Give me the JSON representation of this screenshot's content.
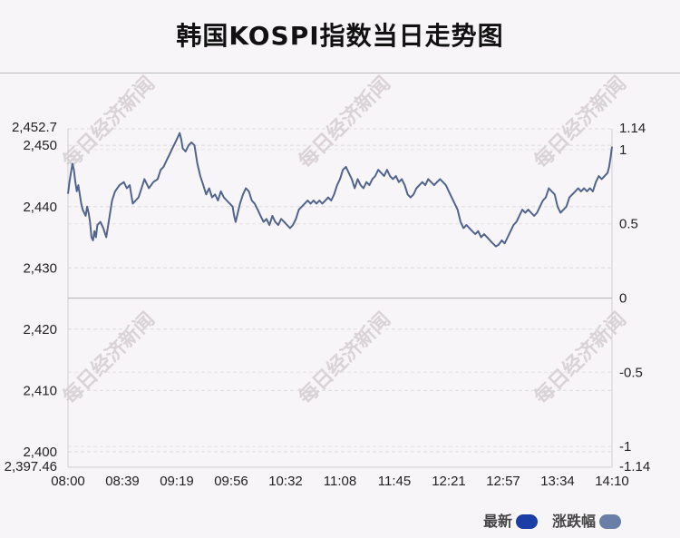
{
  "chart_data": {
    "type": "line",
    "title": "韩国KOSPI指数当日走势图",
    "watermark": "每日经济新闻",
    "legend": {
      "placement": "bottom-right",
      "entries": [
        {
          "label": "最新",
          "color": "#1a3da8"
        },
        {
          "label": "涨跌幅",
          "color": "#6a7fa8"
        }
      ]
    },
    "line_color": "#51648c",
    "x_tick_labels": [
      "08:00",
      "08:39",
      "09:19",
      "09:56",
      "10:32",
      "11:08",
      "11:45",
      "12:21",
      "12:57",
      "13:34",
      "14:10"
    ],
    "x_range_minutes": [
      0,
      370
    ],
    "y_left": {
      "ticks": [
        2397.46,
        2400,
        2410,
        2420,
        2430,
        2440,
        2450,
        2452.7
      ],
      "tick_labels": [
        "2,397.46",
        "2,400",
        "2,410",
        "2,420",
        "2,430",
        "2,440",
        "2,450",
        "2,452.7"
      ],
      "range": [
        2397.46,
        2452.7
      ],
      "baseline": 2425.07
    },
    "y_right": {
      "ticks": [
        -1.14,
        -1,
        -0.5,
        0,
        0.5,
        1,
        1.14
      ],
      "tick_labels": [
        "-1.14",
        "-1",
        "-0.5",
        "0",
        "0.5",
        "1",
        "1.14"
      ],
      "range": [
        -1.14,
        1.14
      ]
    },
    "grid": true,
    "series": [
      {
        "name": "最新",
        "points": [
          [
            0,
            2442.1
          ],
          [
            1,
            2444.0
          ],
          [
            2,
            2445.5
          ],
          [
            3,
            2447.0
          ],
          [
            4,
            2446.0
          ],
          [
            5,
            2444.0
          ],
          [
            6,
            2442.5
          ],
          [
            7,
            2443.5
          ],
          [
            8,
            2442.0
          ],
          [
            9,
            2440.5
          ],
          [
            10,
            2439.5
          ],
          [
            11,
            2439.0
          ],
          [
            12,
            2438.5
          ],
          [
            13,
            2440.0
          ],
          [
            14,
            2439.0
          ],
          [
            15,
            2437.5
          ],
          [
            16,
            2435.0
          ],
          [
            17,
            2434.5
          ],
          [
            18,
            2436.0
          ],
          [
            19,
            2435.0
          ],
          [
            20,
            2437.0
          ],
          [
            22,
            2437.5
          ],
          [
            24,
            2436.5
          ],
          [
            26,
            2435.0
          ],
          [
            28,
            2438.0
          ],
          [
            30,
            2441.0
          ],
          [
            32,
            2442.5
          ],
          [
            35,
            2443.5
          ],
          [
            38,
            2444.0
          ],
          [
            40,
            2443.0
          ],
          [
            42,
            2443.5
          ],
          [
            44,
            2440.5
          ],
          [
            46,
            2441.0
          ],
          [
            48,
            2441.5
          ],
          [
            50,
            2443.0
          ],
          [
            52,
            2444.5
          ],
          [
            55,
            2443.0
          ],
          [
            58,
            2444.0
          ],
          [
            61,
            2444.5
          ],
          [
            63,
            2446.0
          ],
          [
            65,
            2446.5
          ],
          [
            67,
            2447.5
          ],
          [
            69,
            2448.5
          ],
          [
            71,
            2449.5
          ],
          [
            73,
            2450.5
          ],
          [
            75,
            2451.5
          ],
          [
            76,
            2452.0
          ],
          [
            77,
            2451.0
          ],
          [
            78,
            2449.5
          ],
          [
            80,
            2449.0
          ],
          [
            82,
            2450.0
          ],
          [
            84,
            2450.5
          ],
          [
            86,
            2450.0
          ],
          [
            88,
            2447.0
          ],
          [
            90,
            2445.0
          ],
          [
            92,
            2443.5
          ],
          [
            94,
            2442.0
          ],
          [
            96,
            2443.0
          ],
          [
            98,
            2441.5
          ],
          [
            100,
            2442.0
          ],
          [
            102,
            2441.0
          ],
          [
            104,
            2442.5
          ],
          [
            106,
            2441.5
          ],
          [
            108,
            2441.0
          ],
          [
            110,
            2440.5
          ],
          [
            112,
            2440.0
          ],
          [
            113,
            2438.5
          ],
          [
            114,
            2437.5
          ],
          [
            115,
            2438.5
          ],
          [
            117,
            2440.5
          ],
          [
            119,
            2442.0
          ],
          [
            121,
            2443.0
          ],
          [
            123,
            2442.5
          ],
          [
            125,
            2441.0
          ],
          [
            127,
            2440.5
          ],
          [
            129,
            2439.5
          ],
          [
            131,
            2438.5
          ],
          [
            133,
            2437.5
          ],
          [
            135,
            2438.0
          ],
          [
            137,
            2437.0
          ],
          [
            139,
            2438.5
          ],
          [
            141,
            2437.5
          ],
          [
            143,
            2437.0
          ],
          [
            145,
            2438.0
          ],
          [
            147,
            2437.5
          ],
          [
            149,
            2437.0
          ],
          [
            151,
            2436.5
          ],
          [
            153,
            2437.0
          ],
          [
            155,
            2438.0
          ],
          [
            157,
            2439.5
          ],
          [
            159,
            2440.0
          ],
          [
            161,
            2440.5
          ],
          [
            163,
            2441.0
          ],
          [
            165,
            2440.5
          ],
          [
            167,
            2441.0
          ],
          [
            169,
            2440.5
          ],
          [
            171,
            2441.0
          ],
          [
            173,
            2440.5
          ],
          [
            175,
            2441.0
          ],
          [
            177,
            2441.5
          ],
          [
            179,
            2441.0
          ],
          [
            181,
            2442.0
          ],
          [
            183,
            2443.5
          ],
          [
            185,
            2444.5
          ],
          [
            187,
            2446.0
          ],
          [
            189,
            2446.5
          ],
          [
            191,
            2445.5
          ],
          [
            193,
            2444.5
          ],
          [
            195,
            2443.0
          ],
          [
            197,
            2444.5
          ],
          [
            199,
            2443.5
          ],
          [
            201,
            2443.0
          ],
          [
            203,
            2444.0
          ],
          [
            205,
            2443.5
          ],
          [
            207,
            2444.5
          ],
          [
            209,
            2445.0
          ],
          [
            211,
            2446.0
          ],
          [
            213,
            2445.5
          ],
          [
            215,
            2445.0
          ],
          [
            217,
            2446.0
          ],
          [
            219,
            2445.0
          ],
          [
            221,
            2444.5
          ],
          [
            223,
            2445.0
          ],
          [
            225,
            2444.0
          ],
          [
            227,
            2444.5
          ],
          [
            229,
            2443.5
          ],
          [
            231,
            2442.0
          ],
          [
            233,
            2441.5
          ],
          [
            235,
            2442.0
          ],
          [
            237,
            2443.0
          ],
          [
            239,
            2443.5
          ],
          [
            241,
            2444.0
          ],
          [
            243,
            2443.5
          ],
          [
            245,
            2444.5
          ],
          [
            247,
            2444.0
          ],
          [
            249,
            2443.5
          ],
          [
            251,
            2444.0
          ],
          [
            253,
            2444.5
          ],
          [
            255,
            2444.0
          ],
          [
            257,
            2443.5
          ],
          [
            259,
            2442.5
          ],
          [
            261,
            2441.5
          ],
          [
            263,
            2440.5
          ],
          [
            265,
            2439.5
          ],
          [
            267,
            2437.5
          ],
          [
            269,
            2436.5
          ],
          [
            271,
            2437.0
          ],
          [
            273,
            2436.5
          ],
          [
            275,
            2436.0
          ],
          [
            277,
            2435.5
          ],
          [
            279,
            2436.0
          ],
          [
            281,
            2435.0
          ],
          [
            283,
            2435.5
          ],
          [
            285,
            2435.0
          ],
          [
            287,
            2434.5
          ],
          [
            289,
            2434.0
          ],
          [
            291,
            2433.5
          ],
          [
            293,
            2433.8
          ],
          [
            295,
            2434.5
          ],
          [
            297,
            2434.0
          ],
          [
            299,
            2435.0
          ],
          [
            301,
            2436.0
          ],
          [
            303,
            2437.0
          ],
          [
            305,
            2437.5
          ],
          [
            307,
            2438.5
          ],
          [
            309,
            2439.5
          ],
          [
            311,
            2439.0
          ],
          [
            313,
            2439.5
          ],
          [
            315,
            2439.0
          ],
          [
            317,
            2438.5
          ],
          [
            319,
            2439.0
          ],
          [
            321,
            2440.0
          ],
          [
            323,
            2441.0
          ],
          [
            325,
            2441.5
          ],
          [
            327,
            2443.0
          ],
          [
            329,
            2442.5
          ],
          [
            331,
            2442.0
          ],
          [
            333,
            2440.0
          ],
          [
            335,
            2439.0
          ],
          [
            337,
            2439.5
          ],
          [
            339,
            2440.0
          ],
          [
            341,
            2441.5
          ],
          [
            343,
            2442.0
          ],
          [
            345,
            2442.5
          ],
          [
            347,
            2443.0
          ],
          [
            349,
            2442.5
          ],
          [
            351,
            2443.0
          ],
          [
            353,
            2442.5
          ],
          [
            355,
            2443.0
          ],
          [
            357,
            2442.5
          ],
          [
            359,
            2444.0
          ],
          [
            361,
            2445.0
          ],
          [
            363,
            2444.5
          ],
          [
            365,
            2445.0
          ],
          [
            367,
            2445.5
          ],
          [
            368,
            2446.5
          ],
          [
            369,
            2448.0
          ],
          [
            370,
            2449.8
          ]
        ]
      }
    ]
  }
}
